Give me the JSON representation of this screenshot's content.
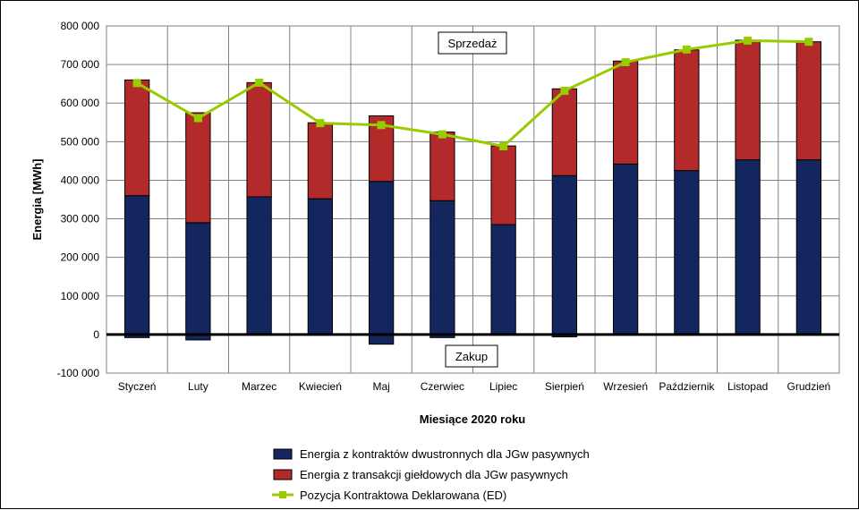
{
  "chart_data": {
    "type": "bar",
    "xlabel": "Miesiące 2020  roku",
    "ylabel": "Energia [MWh]",
    "ylim": [
      -100000,
      800000
    ],
    "yticks": [
      -100000,
      0,
      100000,
      200000,
      300000,
      400000,
      500000,
      600000,
      700000,
      800000
    ],
    "ytick_labels": [
      "-100 000",
      "0",
      "100 000",
      "200 000",
      "300 000",
      "400 000",
      "500 000",
      "600 000",
      "700 000",
      "800 000"
    ],
    "categories": [
      "Styczeń",
      "Luty",
      "Marzec",
      "Kwiecień",
      "Maj",
      "Czerwiec",
      "Lipiec",
      "Sierpień",
      "Wrzesień",
      "Październik",
      "Listopad",
      "Grudzień"
    ],
    "grid": true,
    "legend_position": "bottom",
    "annotations": {
      "sell": "Sprzedaż",
      "buy": "Zakup"
    },
    "series": [
      {
        "name": "Energia z kontraktów dwustronnych dla JGw pasywnych",
        "kind": "bar",
        "color": "#13275e",
        "values": [
          360000,
          290000,
          357000,
          352000,
          397000,
          347000,
          285000,
          412000,
          442000,
          425000,
          453000,
          453000
        ],
        "negative": [
          -8000,
          -14000,
          0,
          0,
          -25000,
          -8000,
          0,
          -6000,
          0,
          0,
          0,
          0
        ]
      },
      {
        "name": "Energia z transakcji giełdowych dla JGw pasywnych",
        "kind": "bar",
        "color": "#b22a2a",
        "values": [
          300000,
          285000,
          296000,
          197000,
          170000,
          178000,
          204000,
          225000,
          267000,
          313000,
          310000,
          306000
        ]
      },
      {
        "name": "Pozycja Kontraktowa Deklarowana (ED)",
        "kind": "line",
        "color": "#99cc00",
        "values": [
          652000,
          561000,
          653000,
          548000,
          543000,
          519000,
          488000,
          632000,
          706000,
          739000,
          762000,
          759000
        ]
      }
    ]
  }
}
